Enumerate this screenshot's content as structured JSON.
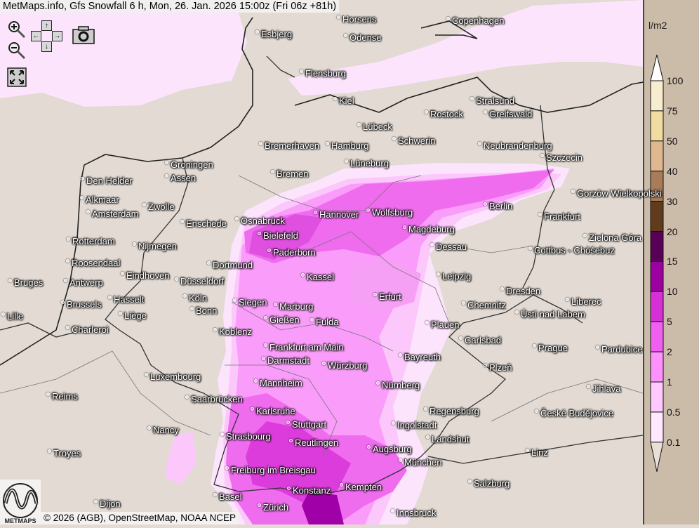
{
  "header": {
    "title": "MetMaps.info, Gfs Snowfall 6 h, Mon, 26. Jan. 2026 15:00z (Fri 06z +81h)"
  },
  "controls": {
    "zoom_in": "zoom-in-icon",
    "zoom_out": "zoom-out-icon",
    "pan_up": "↑",
    "pan_down": "↓",
    "pan_left": "←",
    "pan_right": "→",
    "camera": "camera-icon",
    "fullscreen": "fullscreen-icon"
  },
  "legend": {
    "unit": "l/m2",
    "labels": [
      "100",
      "75",
      "50",
      "40",
      "30",
      "20",
      "15",
      "10",
      "5",
      "2",
      "1",
      "0.5",
      "0.1"
    ],
    "colors": [
      "#ffffff",
      "#f8ecd0",
      "#f0dca0",
      "#e0b890",
      "#a87c58",
      "#603c1c",
      "#580058",
      "#9c00a0",
      "#d830d8",
      "#f060f0",
      "#ff90ff",
      "#ffc8ff",
      "#ffe8ff",
      "#e8e0d8"
    ]
  },
  "map": {
    "colors": {
      "land": "#e2dad3",
      "snow_0_1": "#fde4fd",
      "snow_0_5": "#fcc8fc",
      "snow_1": "#fa9cfa",
      "snow_2": "#ef6cef",
      "snow_5": "#dc3cdc",
      "snow_10": "#a000a8"
    },
    "cities": [
      "Horsens",
      "Copenhagen",
      "Esbjerg",
      "Odense",
      "Flensburg",
      "Kiel",
      "Stralsund",
      "Rostock",
      "Greifswald",
      "Lübeck",
      "Schwerin",
      "Bremerhaven",
      "Hamburg",
      "Neubrandenburg",
      "Szczecin",
      "Lüneburg",
      "Groningen",
      "Bremen",
      "Assen",
      "Den Helder",
      "Alkmaar",
      "Gorzów Wielkopolski",
      "Zwolle",
      "Berlin",
      "Amsterdam",
      "Hannover",
      "Wolfsburg",
      "Frankfurt",
      "Enschede",
      "Osnabrück",
      "Magdeburg",
      "Bielefeld",
      "Zielona Góra",
      "Rotterdam",
      "Nijmegen",
      "Dessau",
      "Cottbus - Chóśebuz",
      "Paderborn",
      "Roosendaal",
      "Eindhoven",
      "Dortmund",
      "Kassel",
      "Leipzig",
      "Bruges",
      "Antwerp",
      "Düsseldorf",
      "Dresden",
      "Erfurt",
      "Hasselt",
      "Brussels",
      "Köln",
      "Siegen",
      "Marburg",
      "Chemnitz",
      "Liberec",
      "Ústí nad Labem",
      "Lille",
      "Liège",
      "Bonn",
      "Gießen",
      "Fulda",
      "Plauen",
      "Charleroi",
      "Koblenz",
      "Carlsbad",
      "Frankfurt am Main",
      "Prague",
      "Pardubice",
      "Darmstadt",
      "Würzburg",
      "Bayreuth",
      "Plzeň",
      "Luxembourg",
      "Mannheim",
      "Nürnberg",
      "Jihlava",
      "Reims",
      "Saarbrücken",
      "Karlsruhe",
      "Regensburg",
      "České Budějovice",
      "Nancy",
      "Stuttgart",
      "Ingolstadt",
      "Strasbourg",
      "Landshut",
      "Reutlingen",
      "Augsburg",
      "Troyes",
      "Linz",
      "München",
      "Freiburg im Breisgau",
      "Salzburg",
      "Konstanz",
      "Kempten",
      "Basel",
      "Zürich",
      "Innsbruck",
      "Dijon"
    ]
  },
  "footer": {
    "copyright": "© 2026 (AGB), OpenStreetMap, NOAA NCEP",
    "logo_text": "METMAPS"
  }
}
